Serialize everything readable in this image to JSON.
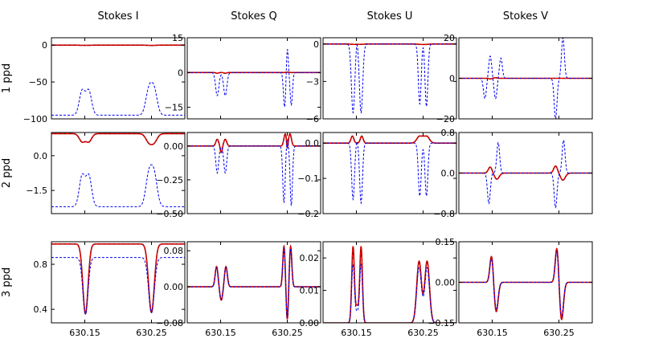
{
  "figure": {
    "column_titles": [
      "Stokes I",
      "Stokes Q",
      "Stokes U",
      "Stokes V"
    ],
    "row_labels": [
      "1 ppd",
      "2 ppd",
      "3 ppd"
    ],
    "x_ticks": [
      "630.15",
      "630.25"
    ],
    "colors": {
      "solid": "#990000",
      "red_dashed": "#ff0000",
      "blue_dashed": "#0000ee"
    }
  },
  "chart_data": [
    {
      "type": "line",
      "row": 0,
      "col": 0,
      "title": "Stokes I",
      "ylabel": "1 ppd",
      "yticks": [
        0,
        -50,
        -100
      ],
      "ytick_labels": [
        "0",
        "−50",
        "−100"
      ],
      "ylim": [
        -100,
        10
      ],
      "xlim": [
        630.1,
        630.3
      ],
      "x_ticks": [
        630.15,
        630.25
      ],
      "x_tick_labels": [
        "630.15",
        "630.25"
      ],
      "series": [
        {
          "name": "solid",
          "profile": "dip",
          "base": 0,
          "amp": -0.5
        },
        {
          "name": "red_dashed",
          "profile": "dip",
          "base": 0,
          "amp": -0.5
        },
        {
          "name": "blue_dashed",
          "profile": "dip",
          "base": -95,
          "amp": 57
        }
      ]
    },
    {
      "type": "line",
      "row": 0,
      "col": 1,
      "title": "Stokes Q",
      "yticks": [
        15,
        0,
        -15
      ],
      "ytick_labels": [
        "15",
        "0",
        "−15"
      ],
      "ylim": [
        -20,
        15
      ],
      "xlim": [
        630.1,
        630.3
      ],
      "x_ticks": [
        630.15,
        630.25
      ],
      "x_tick_labels": [
        "630.15",
        "630.25"
      ],
      "series": [
        {
          "name": "solid",
          "profile": "q",
          "amp": 0.3
        },
        {
          "name": "red_dashed",
          "profile": "q",
          "amp": 0.3
        },
        {
          "name": "blue_dashed",
          "profile": "q1",
          "amp": 1
        }
      ]
    },
    {
      "type": "line",
      "row": 0,
      "col": 2,
      "title": "Stokes U",
      "yticks": [
        0,
        -3,
        -6
      ],
      "ytick_labels": [
        "0",
        "−3",
        "−6"
      ],
      "ylim": [
        -6,
        0.5
      ],
      "xlim": [
        630.1,
        630.3
      ],
      "x_ticks": [
        630.15,
        630.25
      ],
      "x_tick_labels": [
        "630.15",
        "630.25"
      ],
      "series": [
        {
          "name": "solid",
          "profile": "dip",
          "base": 0,
          "amp": -0.05
        },
        {
          "name": "red_dashed",
          "profile": "dip",
          "base": 0,
          "amp": -0.05
        },
        {
          "name": "blue_dashed",
          "profile": "u1",
          "amp": 1
        }
      ]
    },
    {
      "type": "line",
      "row": 0,
      "col": 3,
      "title": "Stokes V",
      "yticks": [
        20,
        0,
        -20
      ],
      "ytick_labels": [
        "20",
        "0",
        "−20"
      ],
      "ylim": [
        -20,
        20
      ],
      "xlim": [
        630.1,
        630.3
      ],
      "x_ticks": [
        630.15,
        630.25
      ],
      "x_tick_labels": [
        "630.15",
        "630.25"
      ],
      "series": [
        {
          "name": "solid",
          "profile": "v",
          "amp": 0.3
        },
        {
          "name": "red_dashed",
          "profile": "v",
          "amp": 0.3
        },
        {
          "name": "blue_dashed",
          "profile": "v1",
          "amp": 1
        }
      ]
    },
    {
      "type": "line",
      "row": 1,
      "col": 0,
      "yticks": [
        0.0,
        -1.5
      ],
      "ytick_labels": [
        "0.0",
        "−1.5"
      ],
      "ylim": [
        -2.5,
        1.0
      ],
      "xlim": [
        630.1,
        630.3
      ],
      "x_ticks": [
        630.15,
        630.25
      ],
      "x_tick_labels": [
        "630.15",
        "630.25"
      ],
      "series": [
        {
          "name": "solid",
          "profile": "dip",
          "base": 0.95,
          "amp": -0.6
        },
        {
          "name": "red_dashed",
          "profile": "dip",
          "base": 0.95,
          "amp": -0.6
        },
        {
          "name": "blue_dashed",
          "profile": "dip",
          "base": -2.2,
          "amp": 2.3
        }
      ]
    },
    {
      "type": "line",
      "row": 1,
      "col": 1,
      "yticks": [
        0.0,
        -0.25,
        -0.5
      ],
      "ytick_labels": [
        "0.00",
        "−0.25",
        "−0.50"
      ],
      "ylim": [
        -0.5,
        0.1
      ],
      "xlim": [
        630.1,
        630.3
      ],
      "x_ticks": [
        630.15,
        630.25
      ],
      "x_tick_labels": [
        "630.15",
        "630.25"
      ],
      "series": [
        {
          "name": "solid",
          "profile": "q2",
          "amp": 1
        },
        {
          "name": "red_dashed",
          "profile": "q2",
          "amp": 1
        },
        {
          "name": "blue_dashed",
          "profile": "q2b",
          "amp": 1
        }
      ]
    },
    {
      "type": "line",
      "row": 1,
      "col": 2,
      "yticks": [
        0.0,
        -0.1,
        -0.2
      ],
      "ytick_labels": [
        "0.0",
        "−0.1",
        "−0.2"
      ],
      "ylim": [
        -0.2,
        0.03
      ],
      "xlim": [
        630.1,
        630.3
      ],
      "x_ticks": [
        630.15,
        630.25
      ],
      "x_tick_labels": [
        "630.15",
        "630.25"
      ],
      "series": [
        {
          "name": "solid",
          "profile": "u2",
          "amp": 1
        },
        {
          "name": "red_dashed",
          "profile": "u2",
          "amp": 1
        },
        {
          "name": "blue_dashed",
          "profile": "u2b",
          "amp": 1
        }
      ]
    },
    {
      "type": "line",
      "row": 1,
      "col": 3,
      "yticks": [
        0.8,
        0.0,
        -0.8
      ],
      "ytick_labels": [
        "0.8",
        "0.0",
        "−0.8"
      ],
      "ylim": [
        -0.8,
        0.8
      ],
      "xlim": [
        630.1,
        630.3
      ],
      "x_ticks": [
        630.15,
        630.25
      ],
      "x_tick_labels": [
        "630.15",
        "630.25"
      ],
      "series": [
        {
          "name": "solid",
          "profile": "v2",
          "amp": 1
        },
        {
          "name": "red_dashed",
          "profile": "v2",
          "amp": 1
        },
        {
          "name": "blue_dashed",
          "profile": "v2b",
          "amp": 1
        }
      ]
    },
    {
      "type": "line",
      "row": 2,
      "col": 0,
      "yticks": [
        0.8,
        0.4
      ],
      "ytick_labels": [
        "0.8",
        "0.4"
      ],
      "ylim": [
        0.28,
        1.0
      ],
      "xlim": [
        630.1,
        630.3
      ],
      "x_ticks": [
        630.15,
        630.25
      ],
      "x_tick_labels": [
        "630.15",
        "630.25"
      ],
      "series": [
        {
          "name": "solid",
          "profile": "i3",
          "base": 0.98,
          "amp": 1
        },
        {
          "name": "red_dashed",
          "profile": "i3",
          "base": 0.98,
          "amp": 1
        },
        {
          "name": "blue_dashed",
          "profile": "i3b",
          "base": 0.86,
          "amp": 1
        }
      ]
    },
    {
      "type": "line",
      "row": 2,
      "col": 1,
      "yticks": [
        0.08,
        0.0,
        -0.08
      ],
      "ytick_labels": [
        "0.08",
        "0.00",
        "−0.08"
      ],
      "ylim": [
        -0.08,
        0.1
      ],
      "xlim": [
        630.1,
        630.3
      ],
      "x_ticks": [
        630.15,
        630.25
      ],
      "x_tick_labels": [
        "630.15",
        "630.25"
      ],
      "series": [
        {
          "name": "solid",
          "profile": "q3",
          "amp": 1
        },
        {
          "name": "red_dashed",
          "profile": "q3",
          "amp": 1
        },
        {
          "name": "blue_dashed",
          "profile": "q3",
          "amp": 0.95
        }
      ]
    },
    {
      "type": "line",
      "row": 2,
      "col": 2,
      "yticks": [
        0.02,
        0.01,
        0.0
      ],
      "ytick_labels": [
        "0.02",
        "0.01",
        "0.00"
      ],
      "ylim": [
        0.0,
        0.025
      ],
      "xlim": [
        630.1,
        630.3
      ],
      "x_ticks": [
        630.15,
        630.25
      ],
      "x_tick_labels": [
        "630.15",
        "630.25"
      ],
      "series": [
        {
          "name": "solid",
          "profile": "u3",
          "amp": 1
        },
        {
          "name": "red_dashed",
          "profile": "u3",
          "amp": 1
        },
        {
          "name": "blue_dashed",
          "profile": "u3b",
          "amp": 1
        }
      ]
    },
    {
      "type": "line",
      "row": 2,
      "col": 3,
      "yticks": [
        0.15,
        0.0,
        -0.15
      ],
      "ytick_labels": [
        "0.15",
        "0.00",
        "−0.15"
      ],
      "ylim": [
        -0.15,
        0.15
      ],
      "xlim": [
        630.1,
        630.3
      ],
      "x_ticks": [
        630.15,
        630.25
      ],
      "x_tick_labels": [
        "630.15",
        "630.25"
      ],
      "series": [
        {
          "name": "solid",
          "profile": "v3",
          "amp": 1
        },
        {
          "name": "red_dashed",
          "profile": "v3",
          "amp": 1
        },
        {
          "name": "blue_dashed",
          "profile": "v3",
          "amp": 0.9
        }
      ]
    }
  ]
}
